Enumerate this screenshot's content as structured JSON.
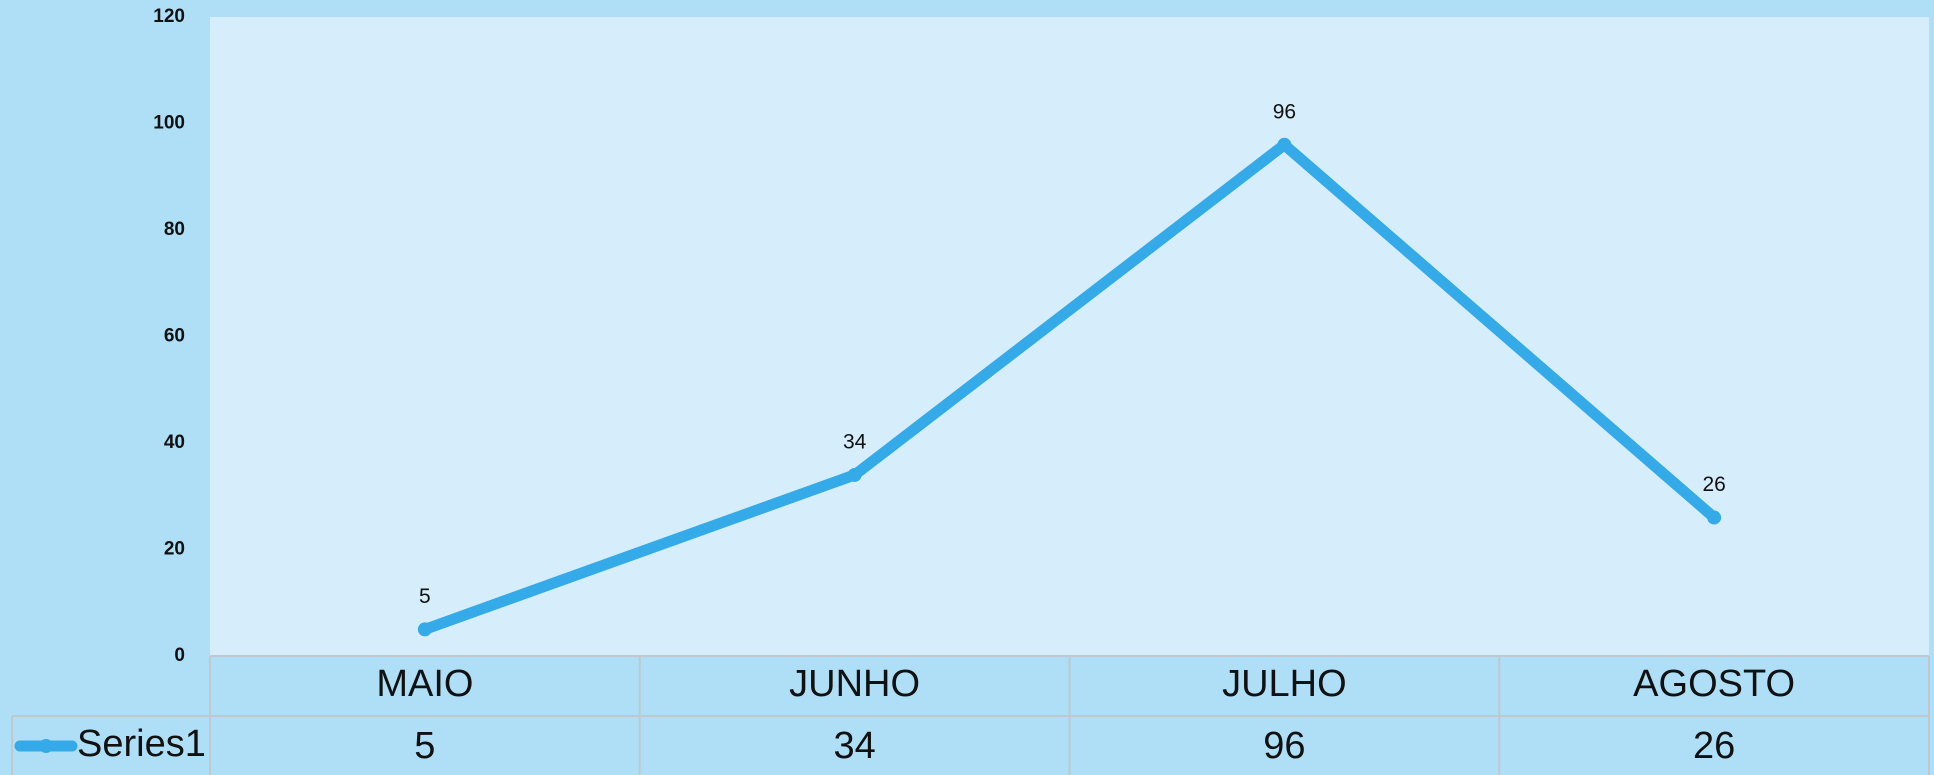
{
  "chart_data": {
    "type": "line",
    "categories": [
      "MAIO",
      "JUNHO",
      "JULHO",
      "AGOSTO"
    ],
    "series": [
      {
        "name": "Series1",
        "color": "#35aae8",
        "values": [
          5,
          34,
          96,
          26
        ],
        "value_labels": [
          "5",
          "34",
          "96",
          "26"
        ]
      }
    ],
    "ylim": [
      0,
      120
    ],
    "yticks": [
      0,
      20,
      40,
      60,
      80,
      100,
      120
    ],
    "grid": false,
    "data_table": true
  }
}
